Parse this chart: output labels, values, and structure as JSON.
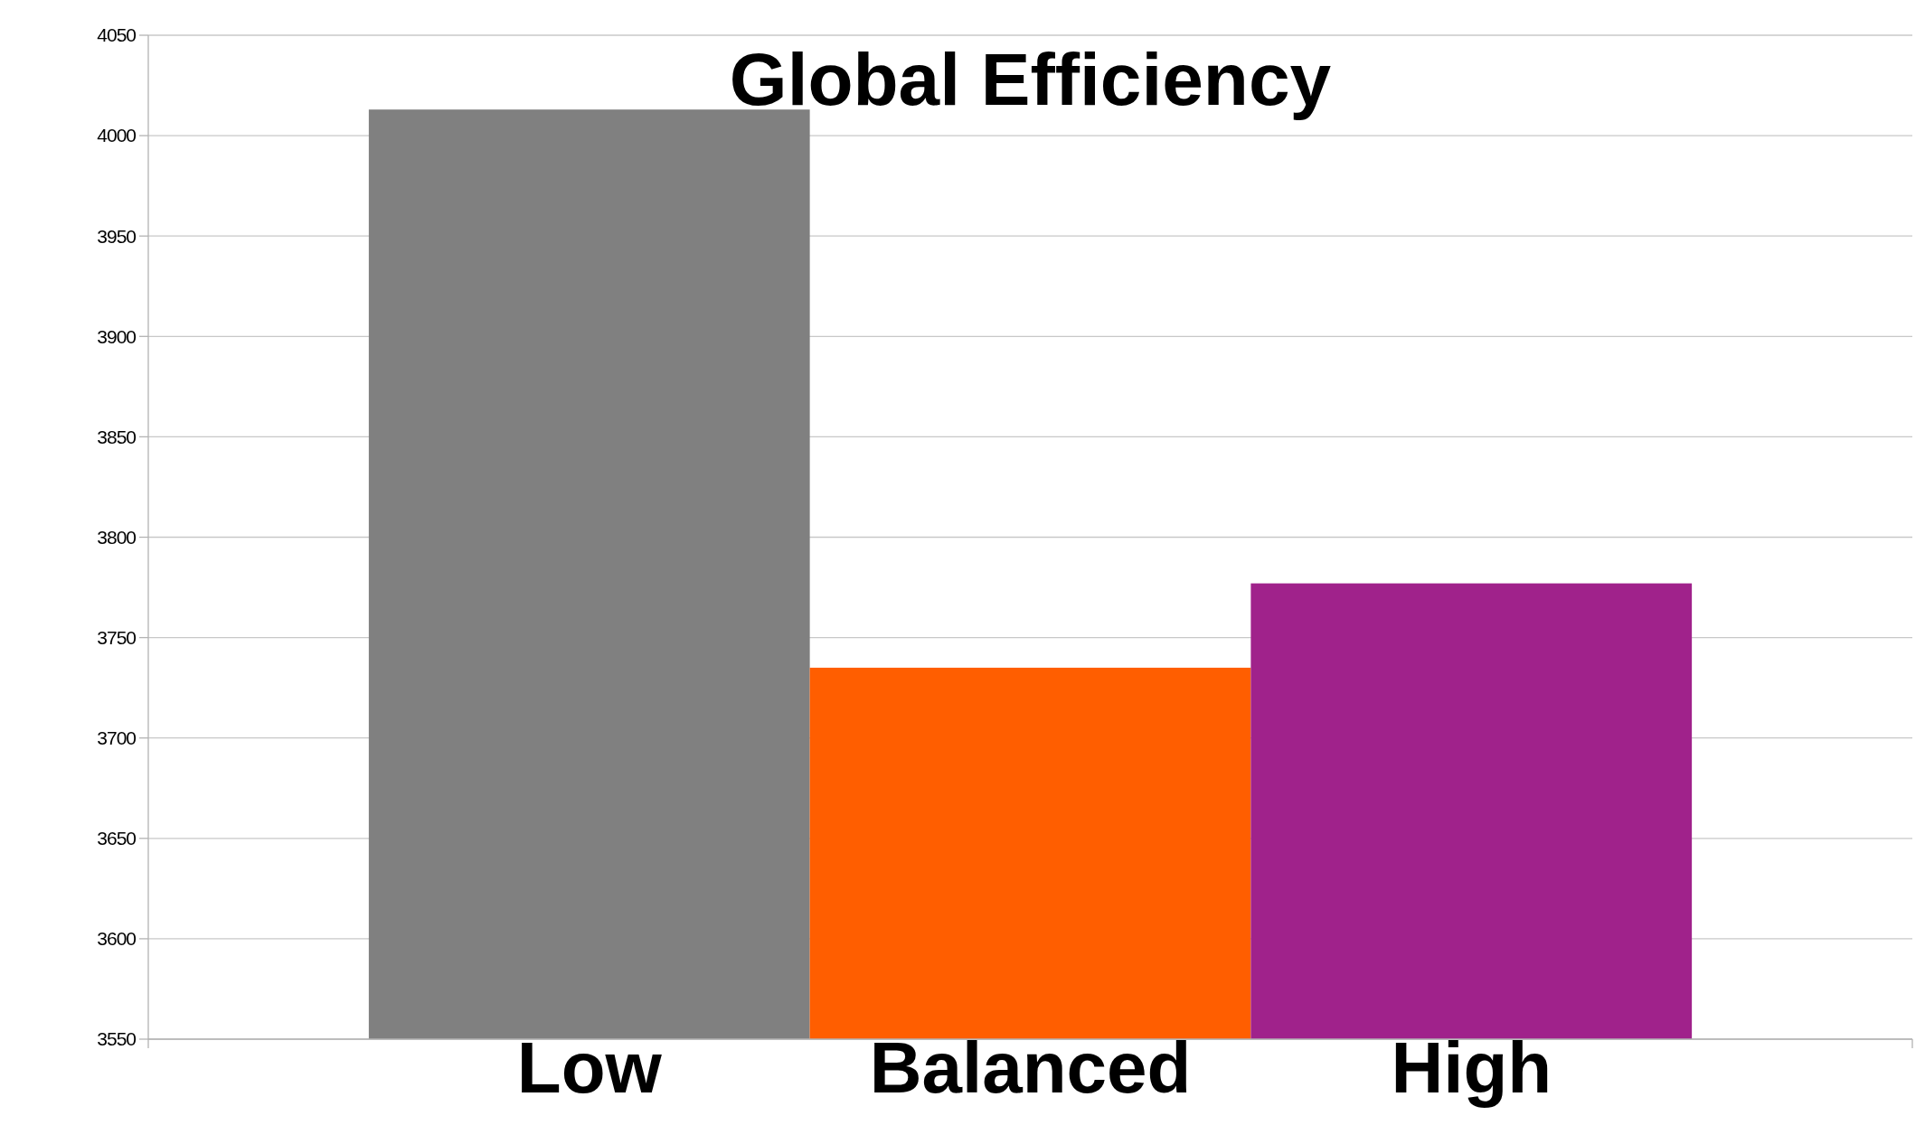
{
  "chart_data": {
    "type": "bar",
    "title": "Global Efficiency",
    "categories": [
      "Low",
      "Balanced",
      "High"
    ],
    "values": [
      4013,
      3735,
      3777
    ],
    "colors": [
      "#808080",
      "#ff5e00",
      "#a0228b"
    ],
    "ylim": [
      3550,
      4050
    ],
    "yticks": [
      3550,
      3600,
      3650,
      3700,
      3750,
      3800,
      3850,
      3900,
      3950,
      4000,
      4050
    ],
    "grid": "y"
  }
}
